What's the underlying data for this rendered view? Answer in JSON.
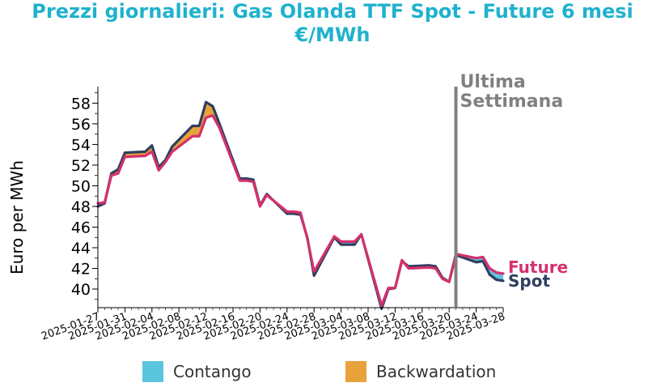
{
  "title_line1": "Prezzi giornalieri: Gas Olanda TTF Spot - Future 6 mesi",
  "title_line2": "€/MWh",
  "colors": {
    "title": "#1fb2cd",
    "spot": "#2f3f5f",
    "future": "#d5306e",
    "contango": "#5bc5dd",
    "backwardation": "#e8a23a",
    "vline": "#808080"
  },
  "legend": [
    {
      "label": "Contango",
      "color": "#5bc5dd"
    },
    {
      "label": "Backwardation",
      "color": "#e8a23a"
    }
  ],
  "chart_data": {
    "type": "line",
    "title": "Prezzi giornalieri: Gas Olanda TTF Spot - Future 6 mesi",
    "subtitle": "€/MWh",
    "xlabel": "",
    "ylabel": "Euro per MWh",
    "ylim": [
      38.2,
      59.6
    ],
    "xlim": [
      "2025-01-27",
      "2025-03-28"
    ],
    "yticks": [
      40,
      42,
      44,
      46,
      48,
      50,
      52,
      54,
      56,
      58
    ],
    "xticks": [
      "2025-01-27",
      "2025-01-31",
      "2025-02-04",
      "2025-02-08",
      "2025-02-12",
      "2025-02-16",
      "2025-02-20",
      "2025-02-24",
      "2025-02-28",
      "2025-03-04",
      "2025-03-08",
      "2025-03-12",
      "2025-03-16",
      "2025-03-20",
      "2025-03-24",
      "2025-03-28"
    ],
    "grid": false,
    "fill_between": {
      "contango": "Future above Spot",
      "backwardation": "Spot above Future"
    },
    "annotation": {
      "text_lines": [
        "Ultima",
        "Settimana"
      ],
      "x": "2025-03-21"
    },
    "series": [
      {
        "name": "Spot",
        "color": "#2f3f5f",
        "x": [
          "2025-01-27",
          "2025-01-28",
          "2025-01-29",
          "2025-01-30",
          "2025-01-31",
          "2025-02-03",
          "2025-02-04",
          "2025-02-05",
          "2025-02-06",
          "2025-02-07",
          "2025-02-10",
          "2025-02-11",
          "2025-02-12",
          "2025-02-13",
          "2025-02-14",
          "2025-02-17",
          "2025-02-18",
          "2025-02-19",
          "2025-02-20",
          "2025-02-21",
          "2025-02-24",
          "2025-02-25",
          "2025-02-26",
          "2025-02-27",
          "2025-02-28",
          "2025-03-03",
          "2025-03-04",
          "2025-03-05",
          "2025-03-06",
          "2025-03-07",
          "2025-03-10",
          "2025-03-11",
          "2025-03-12",
          "2025-03-13",
          "2025-03-14",
          "2025-03-17",
          "2025-03-18",
          "2025-03-19",
          "2025-03-20",
          "2025-03-21",
          "2025-03-24",
          "2025-03-25",
          "2025-03-26",
          "2025-03-27",
          "2025-03-28"
        ],
        "values": [
          48.0,
          48.3,
          51.2,
          51.6,
          53.2,
          53.3,
          53.9,
          51.8,
          52.5,
          53.8,
          55.8,
          55.8,
          58.1,
          57.7,
          56.0,
          50.7,
          50.7,
          50.6,
          48.1,
          49.2,
          47.3,
          47.3,
          47.2,
          45.0,
          41.3,
          45.0,
          44.3,
          44.3,
          44.3,
          45.3,
          38.1,
          40.0,
          40.1,
          42.7,
          42.2,
          42.3,
          42.2,
          41.1,
          40.7,
          43.3,
          42.6,
          42.7,
          41.4,
          40.9,
          40.8
        ]
      },
      {
        "name": "Future",
        "color": "#d5306e",
        "x": [
          "2025-01-27",
          "2025-01-28",
          "2025-01-29",
          "2025-01-30",
          "2025-01-31",
          "2025-02-03",
          "2025-02-04",
          "2025-02-05",
          "2025-02-06",
          "2025-02-07",
          "2025-02-10",
          "2025-02-11",
          "2025-02-12",
          "2025-02-13",
          "2025-02-14",
          "2025-02-17",
          "2025-02-18",
          "2025-02-19",
          "2025-02-20",
          "2025-02-21",
          "2025-02-24",
          "2025-02-25",
          "2025-02-26",
          "2025-02-27",
          "2025-02-28",
          "2025-03-03",
          "2025-03-04",
          "2025-03-05",
          "2025-03-06",
          "2025-03-07",
          "2025-03-10",
          "2025-03-11",
          "2025-03-12",
          "2025-03-13",
          "2025-03-14",
          "2025-03-17",
          "2025-03-18",
          "2025-03-19",
          "2025-03-20",
          "2025-03-21",
          "2025-03-24",
          "2025-03-25",
          "2025-03-26",
          "2025-03-27",
          "2025-03-28"
        ],
        "values": [
          48.3,
          48.4,
          51.0,
          51.2,
          52.8,
          52.9,
          53.3,
          51.5,
          52.3,
          53.3,
          54.8,
          54.8,
          56.6,
          56.8,
          55.6,
          50.5,
          50.5,
          50.4,
          48.0,
          49.1,
          47.5,
          47.5,
          47.4,
          44.9,
          41.7,
          45.1,
          44.6,
          44.6,
          44.6,
          45.3,
          38.4,
          40.1,
          40.1,
          42.8,
          42.0,
          42.1,
          42.0,
          41.0,
          40.7,
          43.4,
          43.0,
          43.1,
          42.0,
          41.6,
          41.5
        ]
      }
    ]
  }
}
